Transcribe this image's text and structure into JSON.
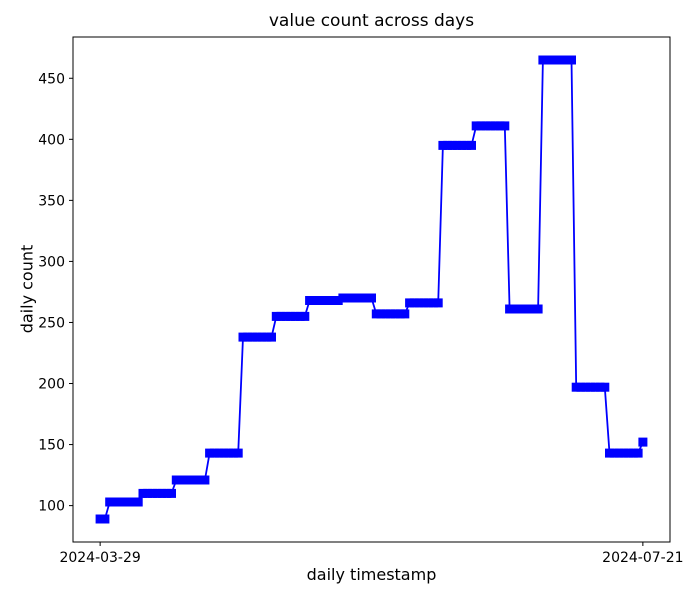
{
  "figure": {
    "background": "#ffffff",
    "text_color": "#000000",
    "axis_color": "#000000"
  },
  "chart_data": {
    "type": "line",
    "title": "value count across days",
    "xlabel": "daily timestamp",
    "ylabel": "daily count",
    "series_color": "#0000ff",
    "marker": "square",
    "grid": false,
    "start_date": "2024-03-29",
    "end_date": "2024-07-21",
    "x_ticks": [
      {
        "day": 0,
        "label": "2024-03-29"
      },
      {
        "day": 114,
        "label": "2024-07-21"
      }
    ],
    "y_ticks": [
      100,
      150,
      200,
      250,
      300,
      350,
      400,
      450
    ],
    "xlim_days": [
      -5.7,
      119.7
    ],
    "ylim": [
      70.2,
      483.8
    ],
    "segments": [
      {
        "start_day": 0,
        "n_days": 2,
        "value": 89,
        "start_date": "2024-03-29"
      },
      {
        "start_day": 2,
        "n_days": 7,
        "value": 103,
        "start_date": "2024-03-31"
      },
      {
        "start_day": 9,
        "n_days": 7,
        "value": 110,
        "start_date": "2024-04-07"
      },
      {
        "start_day": 16,
        "n_days": 7,
        "value": 121,
        "start_date": "2024-04-14"
      },
      {
        "start_day": 23,
        "n_days": 7,
        "value": 143,
        "start_date": "2024-04-21"
      },
      {
        "start_day": 30,
        "n_days": 7,
        "value": 238,
        "start_date": "2024-04-28"
      },
      {
        "start_day": 37,
        "n_days": 7,
        "value": 255,
        "start_date": "2024-05-05"
      },
      {
        "start_day": 44,
        "n_days": 7,
        "value": 268,
        "start_date": "2024-05-12"
      },
      {
        "start_day": 51,
        "n_days": 7,
        "value": 270,
        "start_date": "2024-05-19"
      },
      {
        "start_day": 58,
        "n_days": 7,
        "value": 257,
        "start_date": "2024-05-26"
      },
      {
        "start_day": 65,
        "n_days": 7,
        "value": 266,
        "start_date": "2024-06-02"
      },
      {
        "start_day": 72,
        "n_days": 7,
        "value": 395,
        "start_date": "2024-06-09"
      },
      {
        "start_day": 79,
        "n_days": 7,
        "value": 411,
        "start_date": "2024-06-16"
      },
      {
        "start_day": 86,
        "n_days": 7,
        "value": 261,
        "start_date": "2024-06-23"
      },
      {
        "start_day": 93,
        "n_days": 7,
        "value": 465,
        "start_date": "2024-06-30"
      },
      {
        "start_day": 100,
        "n_days": 7,
        "value": 197,
        "start_date": "2024-07-07"
      },
      {
        "start_day": 107,
        "n_days": 7,
        "value": 143,
        "start_date": "2024-07-14"
      },
      {
        "start_day": 114,
        "n_days": 1,
        "value": 152,
        "start_date": "2024-07-21"
      }
    ]
  }
}
